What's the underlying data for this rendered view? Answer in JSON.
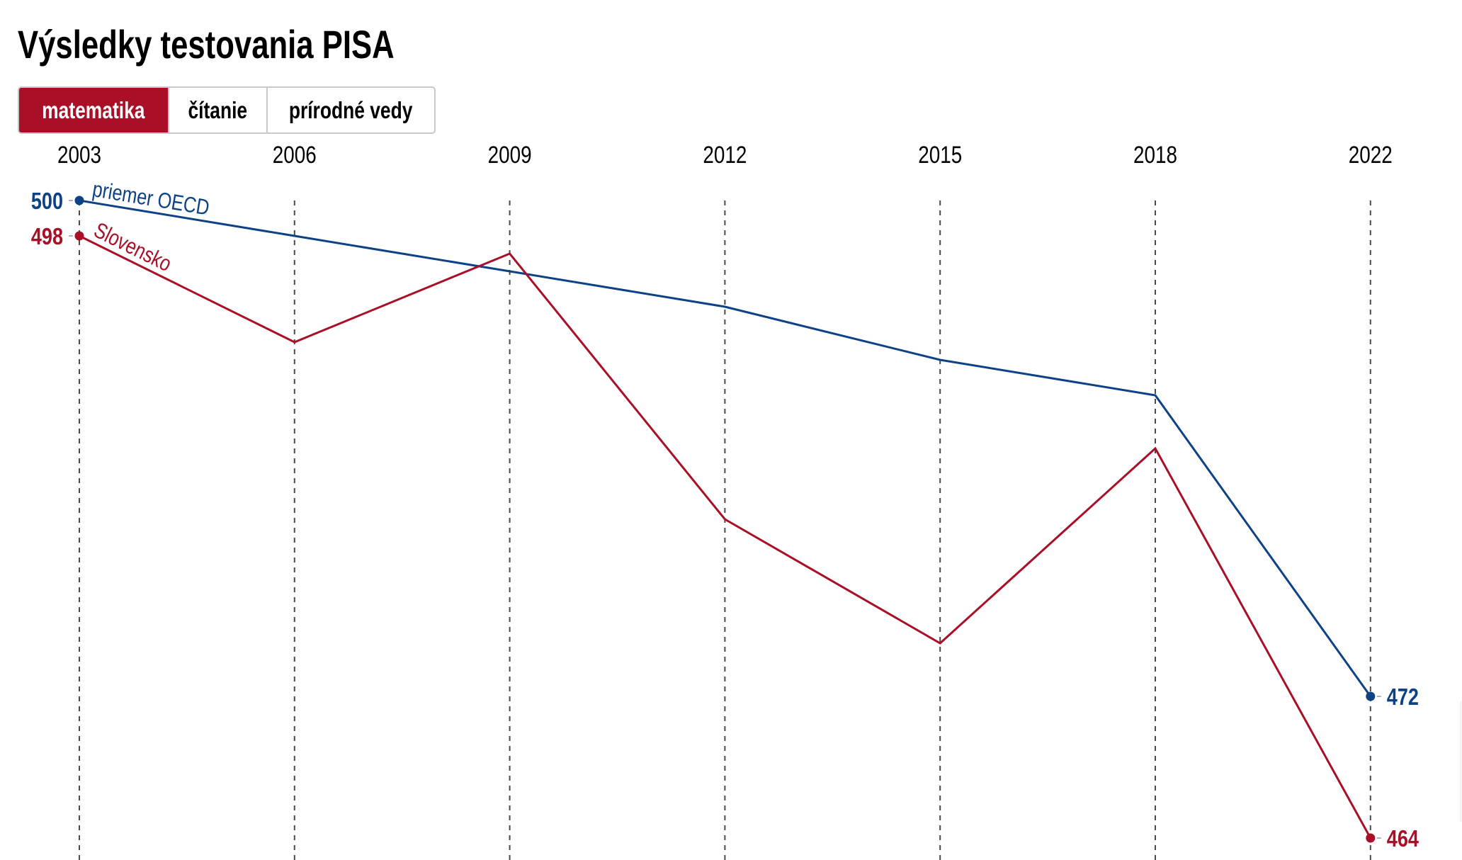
{
  "title": "Výsledky testovania PISA",
  "tabs": [
    {
      "label": "matematika",
      "active": true
    },
    {
      "label": "čítanie",
      "active": false
    },
    {
      "label": "prírodné vedy",
      "active": false
    }
  ],
  "colors": {
    "accent": "#a90f26",
    "oecd": "#0d4286",
    "slovensko": "#a90f26",
    "gridline": "#4a4a4a",
    "tick": "#b0b0b0"
  },
  "chart_data": {
    "type": "line",
    "title": "Výsledky testovania PISA",
    "subject": "matematika",
    "x": [
      "2003",
      "2006",
      "2009",
      "2012",
      "2015",
      "2018",
      "2022"
    ],
    "series": [
      {
        "name": "priemer OECD",
        "color": "#0d4286",
        "values": [
          500,
          498,
          496,
          494,
          491,
          489,
          472
        ],
        "start_label": "500",
        "end_label": "472"
      },
      {
        "name": "Slovensko",
        "color": "#a90f26",
        "values": [
          498,
          492,
          497,
          482,
          475,
          486,
          464
        ],
        "start_label": "498",
        "end_label": "464"
      }
    ],
    "ylim": [
      464,
      500
    ],
    "grid": "vertical dashed per year",
    "xaxis_position": "top",
    "legend": "inline labels at start of lines"
  }
}
